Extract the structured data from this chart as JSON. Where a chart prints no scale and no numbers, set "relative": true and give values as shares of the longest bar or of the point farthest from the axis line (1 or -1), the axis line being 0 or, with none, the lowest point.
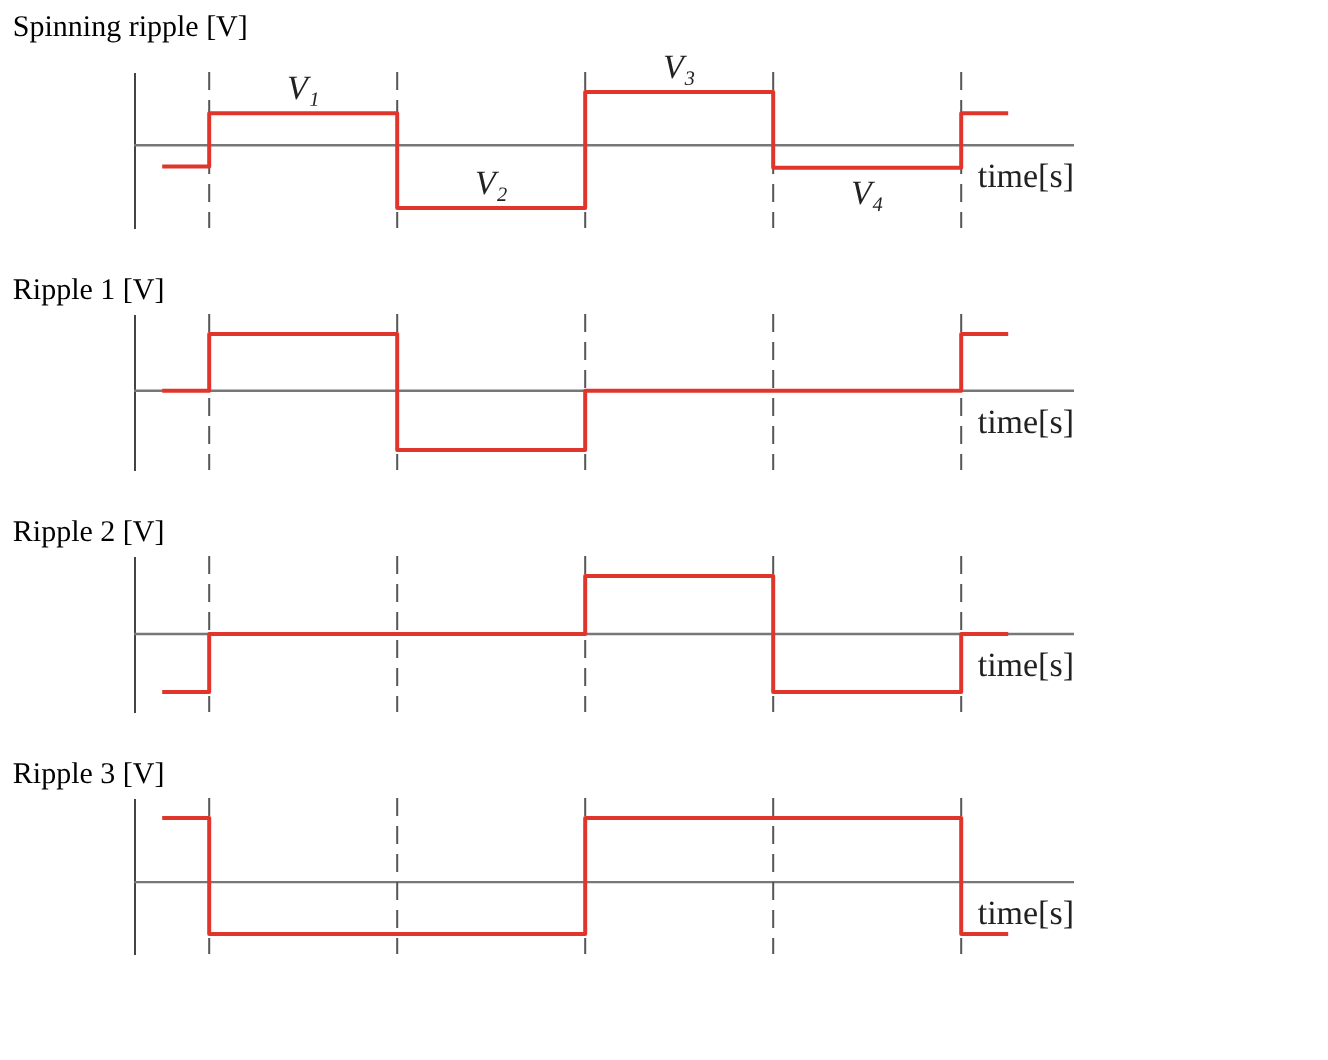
{
  "chart_data": [
    {
      "type": "step",
      "ylabel": "Spinning ripple [V]",
      "xlabel": "time[s]",
      "relative": true,
      "grid": "x",
      "categories": [
        null,
        null,
        null,
        null,
        null,
        null,
        null,
        null,
        null,
        null,
        null,
        null,
        null,
        null,
        null,
        null,
        null,
        null,
        null
      ],
      "series": [
        {
          "color": "#e0352b",
          "values": [
            -0.34,
            0.51,
            0.51,
            0.51,
            0.51,
            -1,
            -1,
            -1,
            -1,
            0.85,
            0.85,
            0.85,
            0.85,
            -0.36,
            -0.36,
            -0.36,
            -0.36,
            0.51,
            0.51
          ]
        }
      ],
      "annotations": [
        "V₁",
        "V₂",
        "V₃",
        "V₄"
      ]
    },
    {
      "type": "step",
      "ylabel": "Ripple 1 [V]",
      "xlabel": "time[s]",
      "relative": true,
      "grid": "x",
      "categories": [
        null,
        null,
        null,
        null,
        null,
        null,
        null,
        null,
        null,
        null,
        null,
        null,
        null,
        null,
        null,
        null,
        null,
        null,
        null
      ],
      "series": [
        {
          "color": "#e0352b",
          "values": [
            0,
            0.96,
            0.96,
            0.96,
            0.96,
            -1,
            -1,
            -1,
            -1,
            0,
            0,
            0,
            0,
            0,
            0,
            0,
            0,
            0.96,
            0.96
          ]
        }
      ]
    },
    {
      "type": "step",
      "ylabel": "Ripple 2 [V]",
      "xlabel": "time[s]",
      "relative": true,
      "grid": "x",
      "categories": [
        null,
        null,
        null,
        null,
        null,
        null,
        null,
        null,
        null,
        null,
        null,
        null,
        null,
        null,
        null,
        null,
        null,
        null,
        null
      ],
      "series": [
        {
          "color": "#e0352b",
          "values": [
            -1,
            0,
            0,
            0,
            0,
            0,
            0,
            0,
            0,
            1,
            1,
            1,
            1,
            -1,
            -1,
            -1,
            -1,
            0,
            0
          ]
        }
      ]
    },
    {
      "type": "step",
      "ylabel": "Ripple 3 [V]",
      "xlabel": "time[s]",
      "relative": true,
      "grid": "x",
      "categories": [
        null,
        null,
        null,
        null,
        null,
        null,
        null,
        null,
        null,
        null,
        null,
        null,
        null,
        null,
        null,
        null,
        null,
        null,
        null
      ],
      "series": [
        {
          "color": "#e0352b",
          "values": [
            1,
            -0.81,
            -0.81,
            -0.81,
            -0.81,
            -0.81,
            -0.81,
            -0.81,
            -0.81,
            1,
            1,
            1,
            1,
            1,
            1,
            1,
            1,
            -0.81,
            -0.81
          ]
        }
      ]
    }
  ]
}
